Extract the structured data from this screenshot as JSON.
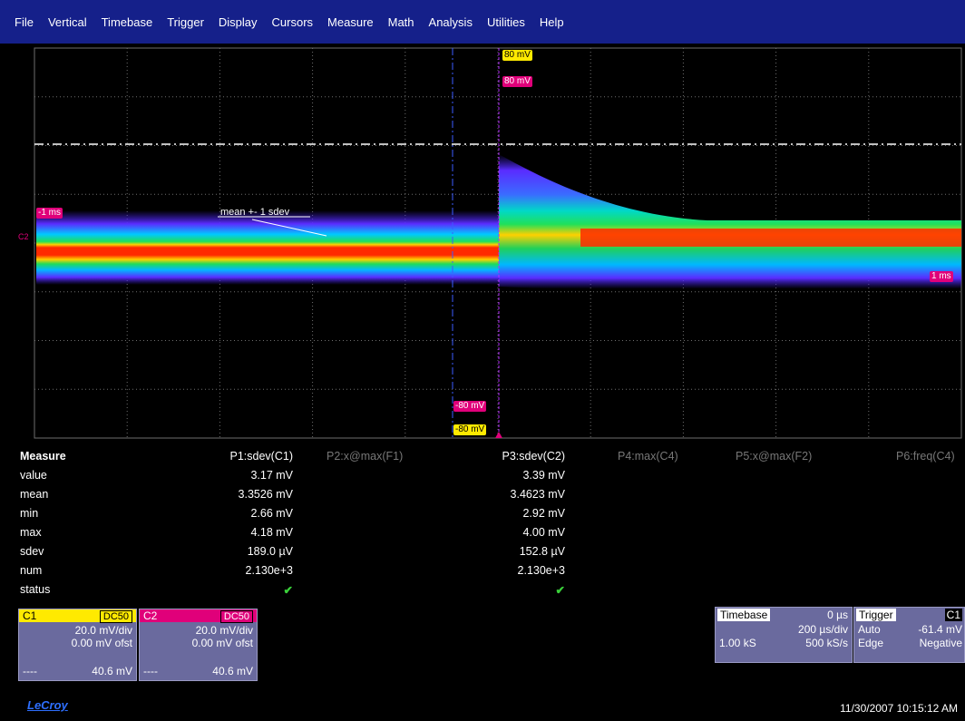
{
  "menu": [
    "File",
    "Vertical",
    "Timebase",
    "Trigger",
    "Display",
    "Cursors",
    "Measure",
    "Math",
    "Analysis",
    "Utilities",
    "Help"
  ],
  "screen": {
    "labels": {
      "top_yellow": "80 mV",
      "top_magenta": "80 mV",
      "bottom_magenta": "-80 mV",
      "bottom_yellow": "-80 mV",
      "left_time": "-1 ms",
      "right_time": "1 ms",
      "c2_marker": "C2",
      "annotation": "mean +- 1 sdev"
    },
    "colors": {
      "grid": "#6e6e6e",
      "c1": "#ffea00",
      "c2": "#e0007a",
      "cursor": "#3b5bff"
    }
  },
  "measure": {
    "title": "Measure",
    "params": [
      "P1:sdev(C1)",
      "P2:x@max(F1)",
      "P3:sdev(C2)",
      "P4:max(C4)",
      "P5:x@max(F2)",
      "P6:freq(C4)"
    ],
    "rows": [
      {
        "label": "value",
        "p1": "3.17 mV",
        "p3": "3.39 mV"
      },
      {
        "label": "mean",
        "p1": "3.3526 mV",
        "p3": "3.4623 mV"
      },
      {
        "label": "min",
        "p1": "2.66 mV",
        "p3": "2.92 mV"
      },
      {
        "label": "max",
        "p1": "4.18 mV",
        "p3": "4.00 mV"
      },
      {
        "label": "sdev",
        "p1": "189.0 µV",
        "p3": "152.8 µV"
      },
      {
        "label": "num",
        "p1": "2.130e+3",
        "p3": "2.130e+3"
      },
      {
        "label": "status",
        "p1": "✔",
        "p3": "✔"
      }
    ]
  },
  "channels": [
    {
      "name": "C1",
      "coupling": "DC50",
      "vdiv": "20.0 mV/div",
      "offset": "0.00 mV ofst",
      "foot_left": "----",
      "foot_right": "40.6 mV",
      "color": "#ffea00"
    },
    {
      "name": "C2",
      "coupling": "DC50",
      "vdiv": "20.0 mV/div",
      "offset": "0.00 mV ofst",
      "foot_left": "----",
      "foot_right": "40.6 mV",
      "color": "#e0007a"
    }
  ],
  "timebase": {
    "title": "Timebase",
    "delay": "0 µs",
    "tdiv": "200 µs/div",
    "samples": "1.00 kS",
    "rate": "500 kS/s"
  },
  "trigger": {
    "title": "Trigger",
    "source": "C1",
    "mode": "Auto",
    "level": "-61.4 mV",
    "type": "Edge",
    "slope": "Negative"
  },
  "brand": "LeCroy",
  "timestamp": "11/30/2007 10:15:12 AM"
}
